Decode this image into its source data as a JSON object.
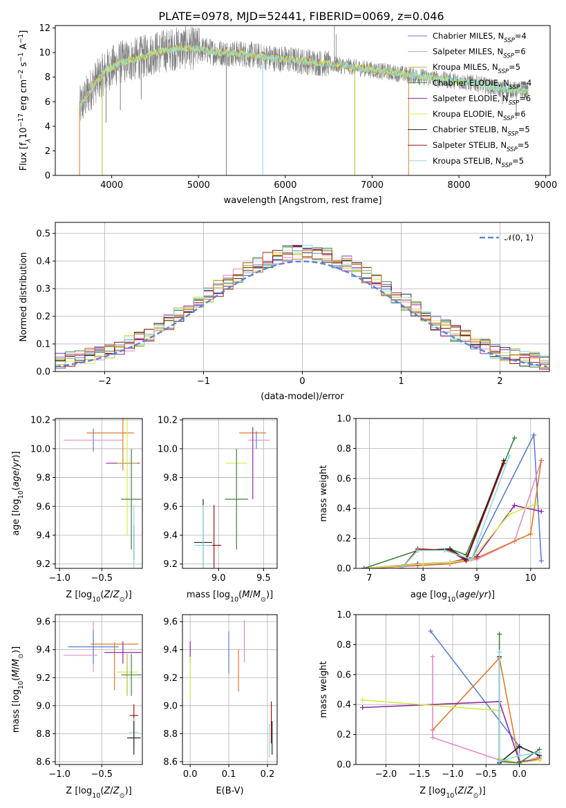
{
  "title": "PLATE=0978, MJD=52441, FIBERID=0069, z=0.046",
  "colors": {
    "Chabrier MILES": "#5b7fd1",
    "Salpeter MILES": "#e38bc0",
    "Kroupa MILES": "#b5bd2f",
    "Chabrier ELODIE": "#3e7f3e",
    "Salpeter ELODIE": "#8e27a1",
    "Kroupa ELODIE": "#d6eb45",
    "Chabrier STELIB": "#222222",
    "Salpeter STELIB": "#9a1010",
    "Kroupa STELIB": "#8fd8e0",
    "data": "#808080",
    "orange": "#e07a2a"
  },
  "chart_data": [
    {
      "id": "spectrum",
      "type": "line",
      "xlabel": "wavelength [Angstrom, rest frame]",
      "ylabel": "Flux [f",
      "xlim": [
        3350,
        9050
      ],
      "ylim": [
        0,
        12.2
      ],
      "xticks": [
        4000,
        5000,
        6000,
        7000,
        8000,
        9000
      ],
      "yticks": [
        0,
        2,
        4,
        6,
        8,
        10,
        12
      ],
      "legend": {
        "position": "upper-right",
        "entries": [
          {
            "name": "Chabrier MILES",
            "base": "Chabrier MILES, N",
            "sub": "SSP",
            "tail": "=4"
          },
          {
            "name": "Salpeter MILES",
            "base": "Salpeter MILES, N",
            "sub": "SSP",
            "tail": "=6"
          },
          {
            "name": "Kroupa MILES",
            "base": "Kroupa MILES, N",
            "sub": "SSP",
            "tail": "=5"
          },
          {
            "name": "Chabrier ELODIE",
            "base": "Chabrier ELODIE, N",
            "sub": "SSP",
            "tail": "=4"
          },
          {
            "name": "Salpeter ELODIE",
            "base": "Salpeter ELODIE, N",
            "sub": "SSP",
            "tail": "=6"
          },
          {
            "name": "Kroupa ELODIE",
            "base": "Kroupa ELODIE, N",
            "sub": "SSP",
            "tail": "=6"
          },
          {
            "name": "Chabrier STELIB",
            "base": "Chabrier STELIB, N",
            "sub": "SSP",
            "tail": "=5"
          },
          {
            "name": "Salpeter STELIB",
            "base": "Salpeter STELIB, N",
            "sub": "SSP",
            "tail": "=5"
          },
          {
            "name": "Kroupa STELIB",
            "base": "Kroupa STELIB, N",
            "sub": "SSP",
            "tail": "=5"
          }
        ]
      },
      "continuum": [
        [
          3630,
          5.5
        ],
        [
          3700,
          6.3
        ],
        [
          3800,
          7.5
        ],
        [
          3950,
          8.6
        ],
        [
          4100,
          9.2
        ],
        [
          4300,
          9.5
        ],
        [
          4500,
          10.0
        ],
        [
          4800,
          10.4
        ],
        [
          5000,
          10.3
        ],
        [
          5200,
          10.0
        ],
        [
          5500,
          9.9
        ],
        [
          5800,
          9.6
        ],
        [
          6200,
          9.3
        ],
        [
          6600,
          9.0
        ],
        [
          7000,
          8.6
        ],
        [
          7400,
          8.2
        ],
        [
          7800,
          7.8
        ],
        [
          8200,
          7.5
        ],
        [
          8500,
          7.0
        ],
        [
          8800,
          6.9
        ]
      ],
      "spikes_down": [
        [
          3630,
          0
        ],
        [
          3890,
          0
        ],
        [
          3935,
          4.3
        ],
        [
          4100,
          5.3
        ],
        [
          4340,
          6.2
        ],
        [
          5320,
          0
        ],
        [
          5740,
          0
        ],
        [
          6800,
          0
        ],
        [
          7420,
          0
        ],
        [
          8500,
          5.8
        ],
        [
          8545,
          5.9
        ],
        [
          8660,
          4.6
        ]
      ],
      "spikes_up": [
        [
          4960,
          11.0
        ],
        [
          5008,
          12.0
        ],
        [
          6565,
          12.2
        ],
        [
          6585,
          11.5
        ]
      ]
    },
    {
      "id": "residuals",
      "type": "histogram",
      "xlabel": "(data-model)/error",
      "ylabel": "Normed distribution",
      "xlim": [
        -2.5,
        2.5
      ],
      "ylim": [
        0,
        0.54
      ],
      "xticks": [
        -2,
        -1,
        0,
        1,
        2
      ],
      "yticks": [
        0.0,
        0.1,
        0.2,
        0.3,
        0.4,
        0.5
      ],
      "legend": {
        "position": "upper-right",
        "label": "𝒩(0, 1)"
      },
      "bin_width": 0.1,
      "bin_start": -2.5
    },
    {
      "id": "age-vs-Z",
      "type": "scatter",
      "xlabel_main": "Z [log",
      "xlabel_sub": "10",
      "xlabel_tail": "(Z/Z",
      "xlabel_end": ")]",
      "ylabel": "age  [log",
      "xlim": [
        -1.05,
        -0.02
      ],
      "ylim": [
        9.17,
        10.21
      ],
      "xticks": [
        -1.0,
        -0.5
      ],
      "yticks": [
        9.2,
        9.4,
        9.6,
        9.8,
        10.0,
        10.2
      ],
      "points": [
        {
          "series": "Chabrier MILES",
          "x": -0.6,
          "y": 10.06,
          "xerr": 0.0,
          "yerr": 0.08
        },
        {
          "series": "Salpeter MILES",
          "x": -0.6,
          "y": 10.06,
          "xerr": 0.35,
          "yerr": 0.0
        },
        {
          "series": "orange",
          "x": -0.4,
          "y": 10.11,
          "xerr": 0.28,
          "yerr": 0.0
        },
        {
          "series": "orange",
          "x": -0.25,
          "y": 10.11,
          "xerr": 0.0,
          "yerr": 0.26
        },
        {
          "series": "Salpeter ELODIE",
          "x": -0.25,
          "y": 9.9,
          "xerr": 0.2,
          "yerr": 0.0
        },
        {
          "series": "Kroupa ELODIE",
          "x": -0.2,
          "y": 9.9,
          "xerr": 0.0,
          "yerr": 0.5
        },
        {
          "series": "Kroupa MILES",
          "x": -0.2,
          "y": 9.9,
          "xerr": 0.12,
          "yerr": 0.0
        },
        {
          "series": "Chabrier ELODIE",
          "x": -0.15,
          "y": 9.65,
          "xerr": 0.12,
          "yerr": 0.35
        },
        {
          "series": "Chabrier STELIB",
          "x": -0.12,
          "y": 9.35,
          "xerr": 0.0,
          "yerr": 0.12
        },
        {
          "series": "Kroupa STELIB",
          "x": -0.12,
          "y": 9.33,
          "xerr": 0.0,
          "yerr": 0.28
        }
      ]
    },
    {
      "id": "age-vs-mass",
      "type": "scatter",
      "xlabel_main": "mass [log",
      "xlabel_sub": "10",
      "xlabel_tail": "(M/M",
      "xlabel_end": ")]",
      "xlim": [
        8.6,
        9.65
      ],
      "ylim": [
        9.17,
        10.21
      ],
      "xticks": [
        9.0,
        9.5
      ],
      "yticks": [
        9.2,
        9.4,
        9.6,
        9.8,
        10.0,
        10.2
      ],
      "points": [
        {
          "series": "orange",
          "x": 9.38,
          "y": 10.11,
          "xerr": 0.15,
          "yerr": 0.0
        },
        {
          "series": "Salpeter MILES",
          "x": 9.45,
          "y": 10.06,
          "xerr": 0.12,
          "yerr": 0.0
        },
        {
          "series": "Chabrier MILES",
          "x": 9.42,
          "y": 10.06,
          "xerr": 0.0,
          "yerr": 0.06
        },
        {
          "series": "Salpeter ELODIE",
          "x": 9.38,
          "y": 9.9,
          "xerr": 0.0,
          "yerr": 0.25
        },
        {
          "series": "Kroupa ELODIE",
          "x": 9.2,
          "y": 9.9,
          "xerr": 0.12,
          "yerr": 0.0
        },
        {
          "series": "Chabrier ELODIE",
          "x": 9.2,
          "y": 9.65,
          "xerr": 0.13,
          "yerr": 0.35
        },
        {
          "series": "Chabrier STELIB",
          "x": 8.83,
          "y": 9.35,
          "xerr": 0.1,
          "yerr": 0.3
        },
        {
          "series": "Salpeter STELIB",
          "x": 8.95,
          "y": 9.33,
          "xerr": 0.08,
          "yerr": 0.28
        },
        {
          "series": "Kroupa STELIB",
          "x": 8.83,
          "y": 9.33,
          "xerr": 0.1,
          "yerr": 0.28
        }
      ]
    },
    {
      "id": "weights-vs-age",
      "type": "line",
      "xlabel": "age  [log",
      "ylabel": "mass weight",
      "xlim": [
        6.75,
        10.35
      ],
      "ylim": [
        0,
        1.0
      ],
      "xticks": [
        7,
        8,
        9,
        10
      ],
      "yticks": [
        0.0,
        0.2,
        0.4,
        0.6,
        0.8,
        1.0
      ],
      "series": [
        {
          "name": "Chabrier MILES",
          "x": [
            6.9,
            8.0,
            8.5,
            8.9,
            10.06,
            10.2
          ],
          "y": [
            0.0,
            0.02,
            0.04,
            0.06,
            0.89,
            0.05
          ]
        },
        {
          "name": "Salpeter MILES",
          "x": [
            6.9,
            8.0,
            8.5,
            9.0,
            9.7,
            10.2
          ],
          "y": [
            0.0,
            0.02,
            0.03,
            0.06,
            0.18,
            0.72
          ]
        },
        {
          "name": "orange",
          "x": [
            6.9,
            7.9,
            8.5,
            9.0,
            10.0,
            10.2
          ],
          "y": [
            0.0,
            0.02,
            0.03,
            0.07,
            0.23,
            0.72
          ]
        },
        {
          "name": "Salpeter ELODIE",
          "x": [
            6.9,
            7.9,
            8.5,
            9.0,
            9.7,
            10.2
          ],
          "y": [
            0.0,
            0.03,
            0.04,
            0.08,
            0.42,
            0.38
          ]
        },
        {
          "name": "Kroupa ELODIE",
          "x": [
            6.9,
            8.0,
            8.5,
            8.9,
            9.6,
            10.1
          ],
          "y": [
            0.0,
            0.03,
            0.04,
            0.06,
            0.36,
            0.43
          ]
        },
        {
          "name": "Chabrier ELODIE",
          "x": [
            6.9,
            7.9,
            8.5,
            8.8,
            9.7
          ],
          "y": [
            0.0,
            0.12,
            0.13,
            0.09,
            0.87
          ]
        },
        {
          "name": "Chabrier STELIB",
          "x": [
            7.6,
            7.9,
            8.5,
            8.8,
            9.5
          ],
          "y": [
            0.0,
            0.12,
            0.13,
            0.06,
            0.72
          ]
        },
        {
          "name": "Salpeter STELIB",
          "x": [
            7.6,
            7.9,
            8.5,
            8.8,
            9.5
          ],
          "y": [
            0.0,
            0.13,
            0.12,
            0.05,
            0.7
          ]
        },
        {
          "name": "Kroupa STELIB",
          "x": [
            7.6,
            7.9,
            8.4,
            8.9,
            9.6
          ],
          "y": [
            0.0,
            0.12,
            0.12,
            0.06,
            0.75
          ]
        }
      ]
    },
    {
      "id": "mass-vs-Z",
      "type": "scatter",
      "xlabel_main": "Z [log",
      "xlabel_sub": "10",
      "xlabel_tail": "(Z/Z",
      "xlabel_end": ")]",
      "ylabel": "mass [log",
      "xlim": [
        -1.05,
        -0.02
      ],
      "ylim": [
        8.58,
        9.65
      ],
      "xticks": [
        -1.0,
        -0.5
      ],
      "yticks": [
        8.6,
        8.8,
        9.0,
        9.2,
        9.4,
        9.6
      ],
      "points": [
        {
          "series": "Salpeter MILES",
          "x": -0.6,
          "y": 9.42,
          "xerr": 0.0,
          "yerr": 0.18
        },
        {
          "series": "Chabrier MILES",
          "x": -0.6,
          "y": 9.42,
          "xerr": 0.3,
          "yerr": 0.12
        },
        {
          "series": "Salpeter MILES",
          "x": -0.75,
          "y": 9.36,
          "xerr": 0.2,
          "yerr": 0.0
        },
        {
          "series": "orange",
          "x": -0.35,
          "y": 9.44,
          "xerr": 0.28,
          "yerr": 0.0
        },
        {
          "series": "orange",
          "x": -0.35,
          "y": 9.28,
          "xerr": 0.0,
          "yerr": 0.17
        },
        {
          "series": "Salpeter ELODIE",
          "x": -0.25,
          "y": 9.38,
          "xerr": 0.22,
          "yerr": 0.08
        },
        {
          "series": "Kroupa ELODIE",
          "x": -0.2,
          "y": 9.24,
          "xerr": 0.12,
          "yerr": 0.0
        },
        {
          "series": "Kroupa MILES",
          "x": -0.2,
          "y": 9.22,
          "xerr": 0.0,
          "yerr": 0.15
        },
        {
          "series": "Chabrier ELODIE",
          "x": -0.15,
          "y": 9.22,
          "xerr": 0.12,
          "yerr": 0.15
        },
        {
          "series": "Salpeter STELIB",
          "x": -0.12,
          "y": 8.93,
          "xerr": 0.05,
          "yerr": 0.08
        },
        {
          "series": "Kroupa STELIB",
          "x": -0.12,
          "y": 8.81,
          "xerr": 0.06,
          "yerr": 0.1
        },
        {
          "series": "Chabrier STELIB",
          "x": -0.12,
          "y": 8.77,
          "xerr": 0.08,
          "yerr": 0.12
        }
      ]
    },
    {
      "id": "mass-vs-EBV",
      "type": "scatter",
      "xlabel": "E(B-V)",
      "xlim": [
        -0.02,
        0.225
      ],
      "ylim": [
        8.58,
        9.65
      ],
      "xticks": [
        0.0,
        0.1,
        0.2
      ],
      "yticks": [
        8.6,
        8.8,
        9.0,
        9.2,
        9.4,
        9.6
      ],
      "points": [
        {
          "series": "Salpeter ELODIE",
          "x": 0.0,
          "y": 9.38,
          "xerr": 0.0,
          "yerr": 0.08
        },
        {
          "series": "Kroupa ELODIE",
          "x": 0.0,
          "y": 9.2,
          "xerr": 0.0,
          "yerr": 0.15
        },
        {
          "series": "Chabrier MILES",
          "x": 0.1,
          "y": 9.38,
          "xerr": 0.0,
          "yerr": 0.15
        },
        {
          "series": "Salpeter MILES",
          "x": 0.14,
          "y": 9.46,
          "xerr": 0.0,
          "yerr": 0.15
        },
        {
          "series": "orange",
          "x": 0.125,
          "y": 9.25,
          "xerr": 0.0,
          "yerr": 0.15
        },
        {
          "series": "Salpeter STELIB",
          "x": 0.21,
          "y": 8.88,
          "xerr": 0.0,
          "yerr": 0.15
        },
        {
          "series": "Chabrier STELIB",
          "x": 0.212,
          "y": 8.77,
          "xerr": 0.0,
          "yerr": 0.12
        },
        {
          "series": "Kroupa STELIB",
          "x": 0.205,
          "y": 8.75,
          "xerr": 0.0,
          "yerr": 0.12
        }
      ]
    },
    {
      "id": "weights-vs-Z",
      "type": "line",
      "xlabel_main": "Z [log",
      "xlabel_sub": "10",
      "xlabel_tail": "(Z/Z",
      "xlabel_end": ")]",
      "ylabel": "mass weight",
      "xlim": [
        -2.45,
        0.45
      ],
      "ylim": [
        0,
        1.0
      ],
      "xticks": [
        -2.0,
        -1.5,
        -1.0,
        -0.5,
        0.0
      ],
      "yticks": [
        0.0,
        0.2,
        0.4,
        0.6,
        0.8,
        1.0
      ],
      "series": [
        {
          "name": "Chabrier MILES",
          "x": [
            -1.33,
            0.0,
            0.0
          ],
          "y": [
            0.89,
            0.12,
            0.01
          ]
        },
        {
          "name": "orange",
          "x": [
            -1.3,
            -0.3,
            0.0,
            0.3
          ],
          "y": [
            0.23,
            0.71,
            0.01,
            0.04
          ]
        },
        {
          "name": "Salpeter MILES",
          "x": [
            -1.3,
            -1.3,
            -0.3,
            0.0,
            0.3
          ],
          "y": [
            0.72,
            0.18,
            0.03,
            0.01,
            0.05
          ]
        },
        {
          "name": "Salpeter ELODIE",
          "x": [
            -2.35,
            -0.3,
            0.0,
            0.3
          ],
          "y": [
            0.38,
            0.42,
            0.02,
            0.03
          ]
        },
        {
          "name": "Kroupa ELODIE",
          "x": [
            -2.35,
            -0.3,
            -0.3,
            0.0,
            0.3
          ],
          "y": [
            0.43,
            0.36,
            0.04,
            0.01,
            0.03
          ]
        },
        {
          "name": "Chabrier ELODIE",
          "x": [
            -0.3,
            -0.3,
            0.0,
            0.3
          ],
          "y": [
            0.87,
            0.02,
            0.01,
            0.1
          ]
        },
        {
          "name": "Chabrier STELIB",
          "x": [
            -0.3,
            -0.3,
            0.0,
            0.3
          ],
          "y": [
            0.72,
            0.01,
            0.12,
            0.06
          ]
        },
        {
          "name": "Kroupa STELIB",
          "x": [
            -0.3,
            -0.3,
            0.0,
            0.3
          ],
          "y": [
            0.75,
            0.02,
            0.06,
            0.08
          ]
        }
      ]
    }
  ]
}
